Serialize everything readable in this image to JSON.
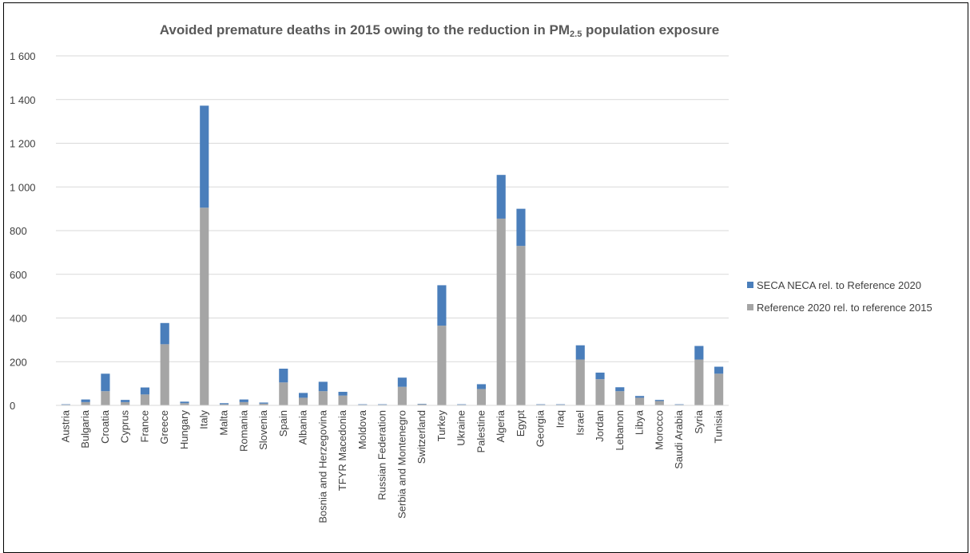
{
  "chart_data": {
    "type": "bar",
    "stacked": true,
    "title_main": "Avoided premature deaths in 2015 owing to the reduction in PM",
    "title_sub": "2.5",
    "title_tail": " population exposure",
    "categories": [
      "Austria",
      "Bulgaria",
      "Croatia",
      "Cyprus",
      "France",
      "Greece",
      "Hungary",
      "Italy",
      "Malta",
      "Romania",
      "Slovenia",
      "Spain",
      "Albania",
      "Bosnia and Herzegovina",
      "TFYR Macedonia",
      "Moldova",
      "Russian Federation",
      "Serbia and Montenegro",
      "Switzerland",
      "Turkey",
      "Ukraine",
      "Palestine",
      "Algeria",
      "Egypt",
      "Georgia",
      "Iraq",
      "Israel",
      "Jordan",
      "Lebanon",
      "Libya",
      "Morocco",
      "Saudi Arabia",
      "Syria",
      "Tunisia"
    ],
    "series": [
      {
        "name": "Reference 2020 rel. to reference 2015",
        "color": "#a5a5a5",
        "values": [
          3,
          15,
          65,
          15,
          50,
          280,
          10,
          905,
          5,
          15,
          8,
          105,
          35,
          65,
          45,
          3,
          3,
          85,
          5,
          365,
          3,
          75,
          855,
          730,
          3,
          3,
          210,
          120,
          65,
          35,
          20,
          3,
          210,
          145
        ]
      },
      {
        "name": "SECA NECA rel. to Reference 2020",
        "color": "#4a7ebb",
        "values": [
          2,
          12,
          80,
          10,
          32,
          97,
          7,
          467,
          5,
          12,
          5,
          63,
          22,
          43,
          17,
          2,
          2,
          42,
          2,
          185,
          2,
          22,
          200,
          170,
          2,
          2,
          65,
          30,
          18,
          8,
          5,
          2,
          62,
          32
        ]
      }
    ],
    "legend_order": [
      "SECA NECA rel. to Reference 2020",
      "Reference 2020 rel. to reference 2015"
    ],
    "ylim": [
      0,
      1600
    ],
    "yticks": [
      0,
      200,
      400,
      600,
      800,
      1000,
      1200,
      1400,
      1600
    ],
    "ytick_labels": [
      "0",
      "200",
      "400",
      "600",
      "800",
      "1 000",
      "1 200",
      "1 400",
      "1 600"
    ],
    "grid": true,
    "legend_position": "right",
    "xlabel": "",
    "ylabel": ""
  }
}
